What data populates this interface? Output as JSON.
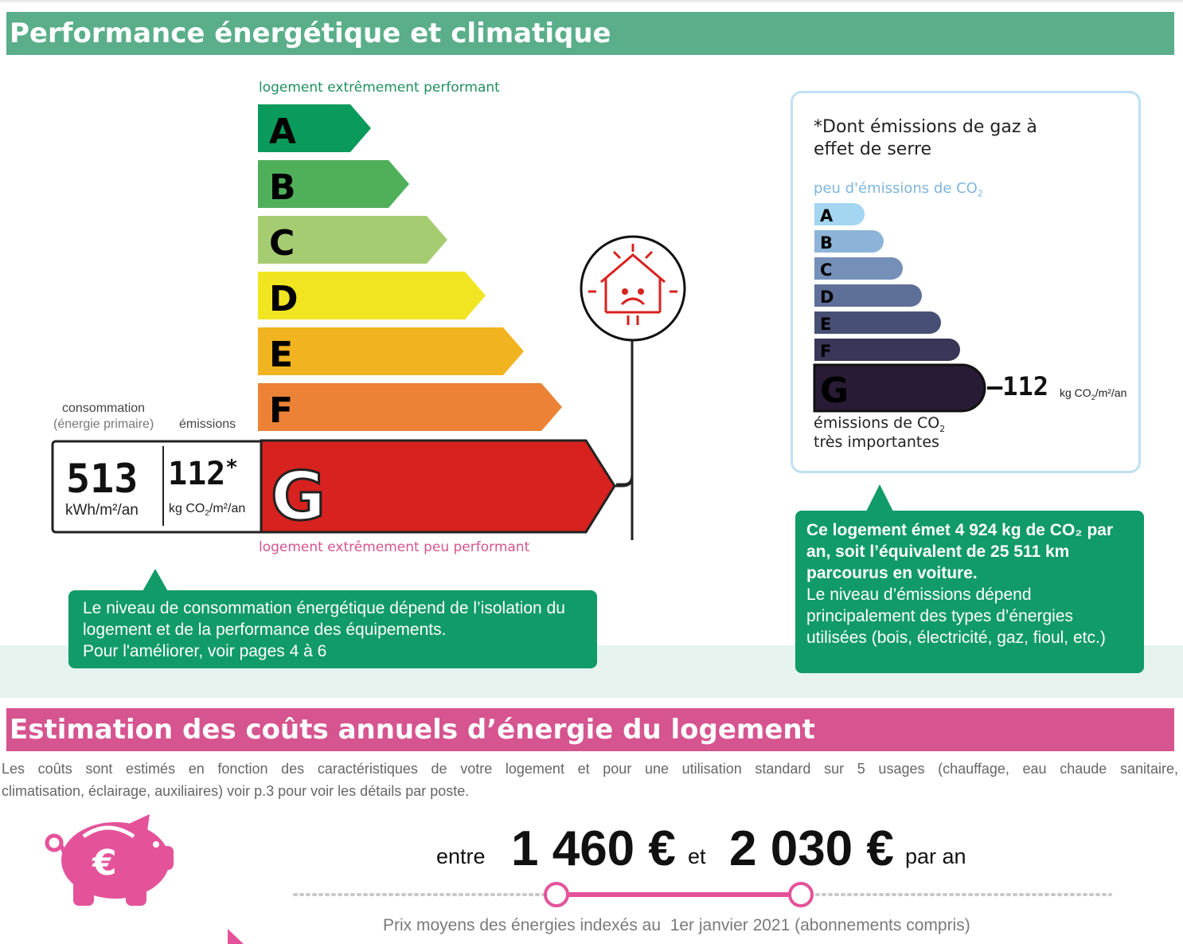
{
  "colors": {
    "section1": "#5aae8a",
    "section2": "#d6548f",
    "bubble": "#109b68",
    "dpe": [
      "#0a9a5b",
      "#50b05a",
      "#a6cc72",
      "#f1e521",
      "#f1b31f",
      "#eb8235",
      "#d7221f"
    ],
    "ges": [
      "#a4d5f1",
      "#8db4d8",
      "#7590b8",
      "#5e6f98",
      "#475074",
      "#3a3658",
      "#281b35"
    ]
  },
  "section1": {
    "title": "Performance énergétique et climatique"
  },
  "dpe": {
    "top_label": "logement extrêmement performant",
    "bottom_label": "logement extrêmement peu performant",
    "letters": [
      "A",
      "B",
      "C",
      "D",
      "E",
      "F",
      "G"
    ],
    "current": "G",
    "consumption_label": "consommation",
    "consumption_sublabel": "(énergie primaire)",
    "emissions_label": "émissions",
    "consumption_value": "513",
    "consumption_unit": "kWh/m²/an",
    "emissions_value": "112",
    "emissions_star": "*",
    "emissions_unit_pre": "kg CO",
    "emissions_unit_sub": "2",
    "emissions_unit_post": "/m²/an",
    "icon": "sad-house-icon"
  },
  "ges": {
    "title": "*Dont émissions de gaz à effet de serre",
    "top_label_pre": "peu d'émissions de CO",
    "top_label_sub": "2",
    "letters": [
      "A",
      "B",
      "C",
      "D",
      "E",
      "F",
      "G"
    ],
    "current": "G",
    "value": "112",
    "unit_pre": "kg CO",
    "unit_sub": "2",
    "unit_post": "/m²/an",
    "bottom_label_1_pre": "émissions de CO",
    "bottom_label_1_sub": "2",
    "bottom_label_2": "très importantes"
  },
  "bubble_left": {
    "line1": "Le niveau de consommation énergétique dépend de l’isolation du",
    "line2": "logement et de la performance des équipements.",
    "line3": "Pour l'améliorer, voir pages 4 à 6"
  },
  "bubble_right": {
    "bold1": "Ce logement émet 4 924 kg de CO₂ par",
    "bold2": "an, soit l’équivalent de 25 511 km",
    "bold3": "parcourus en voiture.",
    "line4": "Le niveau d’émissions dépend",
    "line5": "principalement des types d’énergies",
    "line6": "utilisées (bois, électricité, gaz, fioul, etc.)"
  },
  "section2": {
    "title": "Estimation des coûts annuels d’énergie du logement",
    "note_line1": "Les coûts sont estimés en fonction des caractéristiques de votre logement et pour une utilisation standard sur 5 usages (chauffage, eau chaude sanitaire,",
    "note_line2": "climatisation, éclairage, auxiliaires) voir p.3 pour voir les détails par poste."
  },
  "costs": {
    "between": "entre",
    "low": "1 460 €",
    "and": "et",
    "high": "2 030 €",
    "per_year": "par an",
    "footnote": "Prix moyens des énergies indexés au  1er janvier 2021 (abonnements compris)",
    "icon": "piggy-bank-euro-icon"
  }
}
